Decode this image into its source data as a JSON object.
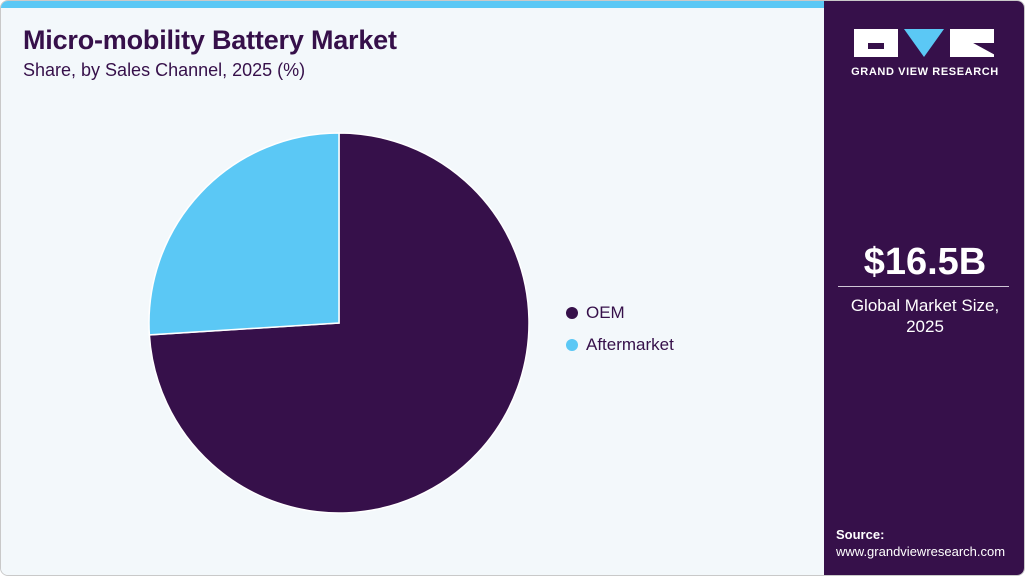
{
  "header": {
    "title": "Micro-mobility Battery Market",
    "subtitle": "Share, by Sales Channel, 2025 (%)"
  },
  "sidebar": {
    "brand": "GRAND VIEW RESEARCH",
    "market_size_value": "$16.5B",
    "market_size_label": "Global Market Size,",
    "market_size_year": "2025",
    "source_heading": "Source:",
    "source_url": "www.grandviewresearch.com"
  },
  "colors": {
    "oem": "#36104a",
    "aftermarket": "#5bc8f5",
    "accent": "#5bc8f5",
    "panel": "#36104a",
    "background": "#f3f8fb"
  },
  "legend": {
    "items": [
      {
        "label": "OEM",
        "color": "#36104a"
      },
      {
        "label": "Aftermarket",
        "color": "#5bc8f5"
      }
    ]
  },
  "chart_data": {
    "type": "pie",
    "title": "Micro-mobility Battery Market",
    "subtitle": "Share, by Sales Channel, 2025 (%)",
    "categories": [
      "OEM",
      "Aftermarket"
    ],
    "values": [
      74,
      26
    ],
    "colors": [
      "#36104a",
      "#5bc8f5"
    ],
    "start_angle": "12 o'clock",
    "direction": "clockwise",
    "legend_position": "right",
    "data_labels": false
  }
}
